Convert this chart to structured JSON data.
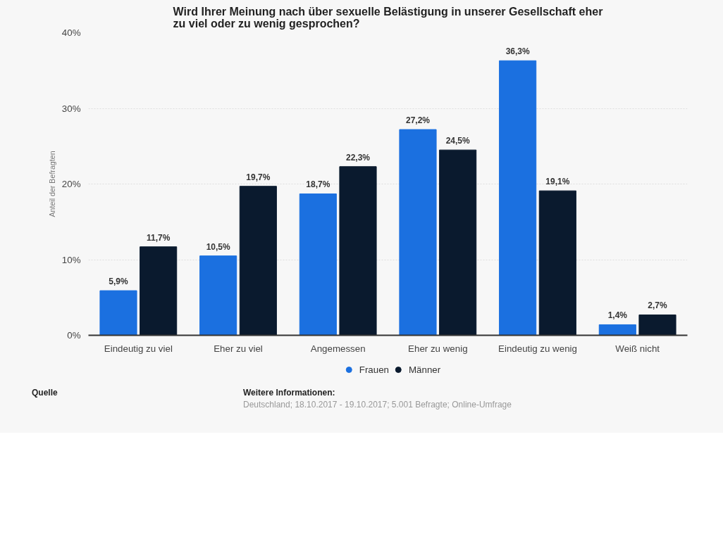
{
  "chart_data": {
    "type": "bar",
    "title": "Wird Ihrer Meinung nach über sexuelle Belästigung in unserer Gesellschaft eher\nzu viel oder zu wenig gesprochen?",
    "ylabel": "Anteil der Befragten",
    "categories": [
      "Eindeutig zu viel",
      "Eher zu viel",
      "Angemessen",
      "Eher zu wenig",
      "Eindeutig zu wenig",
      "Weiß nicht"
    ],
    "series": [
      {
        "name": "Frauen",
        "color": "#1b70e0",
        "values": [
          5.9,
          10.5,
          18.7,
          27.2,
          36.3,
          1.4
        ],
        "value_labels": [
          "5,9%",
          "10,5%",
          "18,7%",
          "27,2%",
          "36,3%",
          "1,4%"
        ]
      },
      {
        "name": "Männer",
        "color": "#0a1a2e",
        "values": [
          11.7,
          19.7,
          22.3,
          24.5,
          19.1,
          2.7
        ],
        "value_labels": [
          "11,7%",
          "19,7%",
          "22,3%",
          "24,5%",
          "19,1%",
          "2,7%"
        ]
      }
    ],
    "ylim": [
      0,
      40
    ],
    "yticks": [
      {
        "value": 0,
        "label": "0%"
      },
      {
        "value": 10,
        "label": "10%"
      },
      {
        "value": 20,
        "label": "20%"
      },
      {
        "value": 30,
        "label": "30%"
      },
      {
        "value": 40,
        "label": "40%"
      }
    ],
    "grid": "y",
    "legend": "bottom",
    "annotations": [
      "Quelle",
      "Weitere Informationen:",
      "Deutschland; 18.10.2017 - 19.10.2017; 5.001 Befragte; Online-Umfrage"
    ]
  }
}
